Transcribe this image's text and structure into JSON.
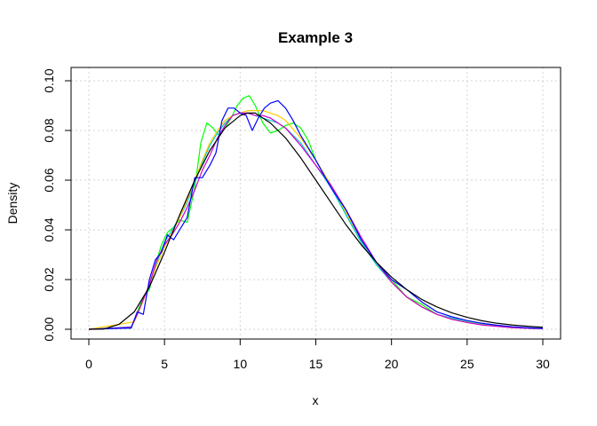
{
  "chart_data": {
    "type": "line",
    "title": "Example 3",
    "xlabel": "x",
    "ylabel": "Density",
    "xlim": [
      0,
      30
    ],
    "ylim": [
      0,
      0.1
    ],
    "xticks": [
      0,
      5,
      10,
      15,
      20,
      25,
      30
    ],
    "yticks": [
      0.0,
      0.02,
      0.04,
      0.06,
      0.08,
      0.1
    ],
    "ytick_labels": [
      "0.00",
      "0.02",
      "0.04",
      "0.06",
      "0.08",
      "0.10"
    ],
    "xtick_labels": [
      "0",
      "5",
      "10",
      "15",
      "20",
      "25",
      "30"
    ],
    "grid": true,
    "series": [
      {
        "color": "#00ff00",
        "x": [
          0,
          2.8,
          3.2,
          3.6,
          4.0,
          4.4,
          4.8,
          5.2,
          5.6,
          6.0,
          6.5,
          7.0,
          7.4,
          7.8,
          8.2,
          8.6,
          9.0,
          9.4,
          9.8,
          10.2,
          10.6,
          11.0,
          11.5,
          12.0,
          12.5,
          13.0,
          13.5,
          14.0,
          14.5,
          15.0,
          16.0,
          17.0,
          18.0,
          19.0,
          20.0,
          21.0,
          22.0,
          23.0,
          24.0,
          25.0,
          26.0,
          27.0,
          28.0,
          29.0,
          30.0
        ],
        "y": [
          0,
          0.0005,
          0.007,
          0.013,
          0.016,
          0.026,
          0.034,
          0.039,
          0.041,
          0.044,
          0.043,
          0.057,
          0.075,
          0.083,
          0.081,
          0.078,
          0.081,
          0.085,
          0.09,
          0.093,
          0.094,
          0.09,
          0.083,
          0.079,
          0.08,
          0.082,
          0.083,
          0.081,
          0.076,
          0.068,
          0.058,
          0.046,
          0.035,
          0.026,
          0.02,
          0.013,
          0.01,
          0.006,
          0.004,
          0.003,
          0.002,
          0.0014,
          0.0008,
          0.0004,
          0.0002
        ]
      },
      {
        "color": "#00cccc",
        "x": [
          0,
          2.8,
          3.2,
          3.6,
          4.0,
          4.5,
          5.0,
          5.5,
          6.0,
          6.5,
          7.0,
          7.5,
          8.0,
          8.5,
          9.0,
          9.5,
          10.0,
          10.5,
          11.0,
          11.5,
          12.0,
          12.5,
          13.0,
          14.0,
          15.0,
          16.0,
          17.0,
          18.0,
          19.0,
          20.0,
          21.0,
          22.0,
          23.0,
          24.0,
          25.0,
          26.0,
          27.0,
          28.0,
          29.0,
          30.0
        ],
        "y": [
          0,
          0.001,
          0.006,
          0.012,
          0.017,
          0.027,
          0.035,
          0.04,
          0.045,
          0.051,
          0.059,
          0.067,
          0.074,
          0.079,
          0.083,
          0.086,
          0.087,
          0.087,
          0.086,
          0.085,
          0.084,
          0.083,
          0.081,
          0.075,
          0.066,
          0.057,
          0.046,
          0.035,
          0.026,
          0.019,
          0.013,
          0.009,
          0.006,
          0.0045,
          0.003,
          0.002,
          0.0013,
          0.0008,
          0.0004,
          0.0002
        ]
      },
      {
        "color": "#ffcc00",
        "x": [
          0,
          3.0,
          3.5,
          4.0,
          4.5,
          5.0,
          5.5,
          6.0,
          6.5,
          7.0,
          7.5,
          8.0,
          8.5,
          9.0,
          9.5,
          10.0,
          10.5,
          11.0,
          11.5,
          12.0,
          12.5,
          13.0,
          14.0,
          15.0,
          16.0,
          17.0,
          18.0,
          19.0,
          20.0,
          21.0,
          22.0,
          23.0,
          24.0,
          25.0,
          26.0,
          28.0,
          30.0
        ],
        "y": [
          0,
          0.003,
          0.01,
          0.018,
          0.026,
          0.033,
          0.039,
          0.045,
          0.052,
          0.06,
          0.068,
          0.075,
          0.08,
          0.084,
          0.086,
          0.087,
          0.088,
          0.088,
          0.088,
          0.087,
          0.086,
          0.084,
          0.077,
          0.068,
          0.058,
          0.047,
          0.036,
          0.027,
          0.019,
          0.013,
          0.009,
          0.006,
          0.004,
          0.0028,
          0.0018,
          0.0007,
          0.0002
        ]
      },
      {
        "color": "#cc00cc",
        "x": [
          0,
          2.8,
          3.2,
          3.6,
          4.0,
          4.5,
          5.0,
          5.5,
          6.0,
          6.5,
          7.0,
          7.5,
          8.0,
          8.5,
          9.0,
          9.5,
          10.0,
          10.5,
          11.0,
          11.5,
          12.0,
          12.5,
          13.0,
          14.0,
          15.0,
          16.0,
          17.0,
          18.0,
          19.0,
          20.0,
          21.0,
          22.0,
          23.0,
          24.0,
          25.0,
          26.0,
          28.0,
          30.0
        ],
        "y": [
          0,
          0.0008,
          0.006,
          0.012,
          0.018,
          0.028,
          0.034,
          0.038,
          0.043,
          0.049,
          0.056,
          0.064,
          0.07,
          0.077,
          0.082,
          0.086,
          0.087,
          0.087,
          0.086,
          0.086,
          0.085,
          0.083,
          0.081,
          0.074,
          0.066,
          0.058,
          0.048,
          0.037,
          0.027,
          0.019,
          0.013,
          0.009,
          0.006,
          0.004,
          0.0027,
          0.0017,
          0.0006,
          0.0002
        ]
      },
      {
        "color": "#0000ff",
        "x": [
          0,
          2.8,
          3.2,
          3.6,
          4.0,
          4.4,
          4.8,
          5.2,
          5.6,
          6.0,
          6.5,
          7.0,
          7.5,
          8.0,
          8.4,
          8.8,
          9.2,
          9.6,
          10.0,
          10.4,
          10.8,
          11.2,
          11.6,
          12.0,
          12.5,
          13.0,
          13.5,
          14.0,
          15.0,
          16.0,
          17.0,
          18.0,
          19.0,
          20.0,
          21.0,
          22.0,
          23.0,
          24.0,
          25.0,
          26.0,
          27.0,
          28.0,
          29.0,
          30.0
        ],
        "y": [
          0,
          0.0005,
          0.007,
          0.006,
          0.02,
          0.028,
          0.031,
          0.038,
          0.036,
          0.04,
          0.045,
          0.061,
          0.061,
          0.066,
          0.071,
          0.084,
          0.089,
          0.089,
          0.087,
          0.086,
          0.08,
          0.085,
          0.089,
          0.091,
          0.092,
          0.089,
          0.084,
          0.078,
          0.068,
          0.057,
          0.048,
          0.036,
          0.027,
          0.02,
          0.016,
          0.011,
          0.007,
          0.005,
          0.0035,
          0.0024,
          0.0016,
          0.001,
          0.0006,
          0.0003
        ]
      },
      {
        "color": "#000000",
        "x": [
          0,
          1,
          2,
          3,
          4,
          5,
          6,
          7,
          8,
          9,
          10,
          10.5,
          11,
          12,
          13,
          14,
          15,
          16,
          17,
          18,
          19,
          20,
          21,
          22,
          23,
          24,
          25,
          26,
          27,
          28,
          29,
          30
        ],
        "y": [
          0,
          0.0001,
          0.002,
          0.007,
          0.017,
          0.031,
          0.046,
          0.06,
          0.072,
          0.081,
          0.086,
          0.087,
          0.087,
          0.083,
          0.077,
          0.069,
          0.06,
          0.051,
          0.042,
          0.034,
          0.027,
          0.021,
          0.016,
          0.012,
          0.009,
          0.0066,
          0.0048,
          0.0034,
          0.0024,
          0.0017,
          0.0012,
          0.0008
        ]
      }
    ]
  }
}
